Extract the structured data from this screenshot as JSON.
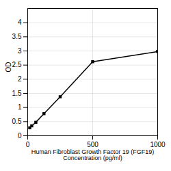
{
  "chart_data": {
    "type": "line",
    "xlabel": "Human Fibroblast Growth Factor 19 (FGF19)\nConcentration (pg/ml)",
    "ylabel": "OD",
    "x": [
      15.6,
      31.2,
      62.5,
      125,
      250,
      500,
      1000
    ],
    "values": [
      0.282,
      0.352,
      0.476,
      0.782,
      1.38,
      2.62,
      2.98
    ],
    "xlim": [
      0,
      1000
    ],
    "xticks": [
      0,
      500,
      1000
    ],
    "ylim": [
      0,
      4.5
    ],
    "yticks": [
      0,
      0.5,
      1,
      1.5,
      2,
      2.5,
      3,
      3.5,
      4
    ],
    "grid": true,
    "marker": "square"
  }
}
